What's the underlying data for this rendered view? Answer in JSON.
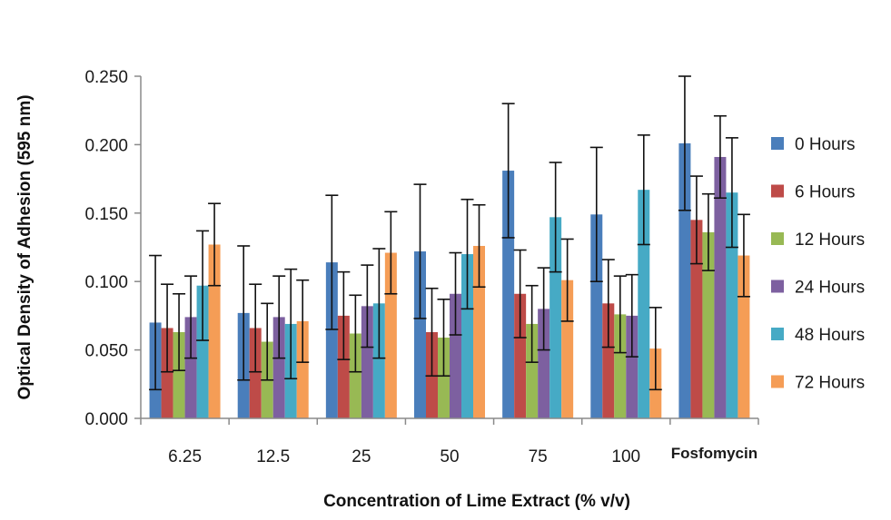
{
  "chart_data": {
    "type": "bar",
    "title": "",
    "xlabel": "Concentration of Lime Extract (% v/v)",
    "ylabel": "Optical Density of Adhesion (595 nm)",
    "ylim": [
      0,
      0.25
    ],
    "yticks": [
      "0.000",
      "0.050",
      "0.100",
      "0.150",
      "0.200",
      "0.250"
    ],
    "grid": false,
    "legend_position": "right",
    "categories": [
      "6.25",
      "12.5",
      "25",
      "50",
      "75",
      "100",
      "Fosfomycin"
    ],
    "series": [
      {
        "name": "0 Hours",
        "color": "#4a7ebb",
        "values": [
          0.07,
          0.077,
          0.114,
          0.122,
          0.181,
          0.149,
          0.201
        ],
        "error": [
          0.049,
          0.049,
          0.049,
          0.049,
          0.049,
          0.049,
          0.049
        ]
      },
      {
        "name": "6 Hours",
        "color": "#be4b48",
        "values": [
          0.066,
          0.066,
          0.075,
          0.063,
          0.091,
          0.084,
          0.145
        ],
        "error": [
          0.032,
          0.032,
          0.032,
          0.032,
          0.032,
          0.032,
          0.032
        ]
      },
      {
        "name": "12 Hours",
        "color": "#98b954",
        "values": [
          0.063,
          0.056,
          0.062,
          0.059,
          0.069,
          0.076,
          0.136
        ],
        "error": [
          0.028,
          0.028,
          0.028,
          0.028,
          0.028,
          0.028,
          0.028
        ]
      },
      {
        "name": "24 Hours",
        "color": "#7d60a0",
        "values": [
          0.074,
          0.074,
          0.082,
          0.091,
          0.08,
          0.075,
          0.191
        ],
        "error": [
          0.03,
          0.03,
          0.03,
          0.03,
          0.03,
          0.03,
          0.03
        ]
      },
      {
        "name": "48 Hours",
        "color": "#46aac5",
        "values": [
          0.097,
          0.069,
          0.084,
          0.12,
          0.147,
          0.167,
          0.165
        ],
        "error": [
          0.04,
          0.04,
          0.04,
          0.04,
          0.04,
          0.04,
          0.04
        ]
      },
      {
        "name": "72 Hours",
        "color": "#f59d56",
        "values": [
          0.127,
          0.071,
          0.121,
          0.126,
          0.101,
          0.051,
          0.119
        ],
        "error": [
          0.03,
          0.03,
          0.03,
          0.03,
          0.03,
          0.03,
          0.03
        ]
      }
    ]
  }
}
